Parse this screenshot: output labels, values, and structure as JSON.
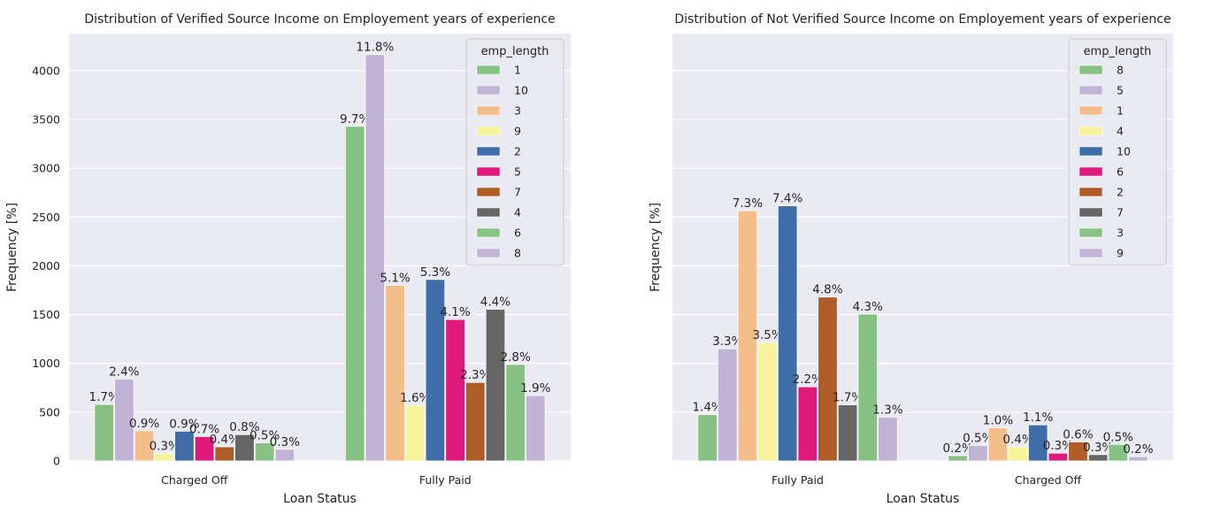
{
  "chart_data": [
    {
      "type": "bar",
      "title": "Distribution of Verified Source Income on Employement years of experience",
      "xlabel": "Loan Status",
      "ylabel": "Frequency [%]",
      "ylim": [
        0,
        4380
      ],
      "yticks": [
        0,
        500,
        1000,
        1500,
        2000,
        2500,
        3000,
        3500,
        4000
      ],
      "show_ytick_labels": true,
      "grid": true,
      "legend_title": "emp_length",
      "legend_position": "top-right",
      "categories": [
        "Charged Off",
        "Fully Paid"
      ],
      "series": [
        {
          "name": "1",
          "color": "#87c285",
          "values": [
            580,
            3430
          ],
          "labels": [
            "1.7%",
            "9.7%"
          ]
        },
        {
          "name": "10",
          "color": "#c0b3d6",
          "values": [
            840,
            4165
          ],
          "labels": [
            "2.4%",
            "11.8%"
          ]
        },
        {
          "name": "3",
          "color": "#f4be8b",
          "values": [
            310,
            1800
          ],
          "labels": [
            "0.9%",
            "5.1%"
          ]
        },
        {
          "name": "9",
          "color": "#f6f39a",
          "values": [
            75,
            570
          ],
          "labels": [
            "0.3%",
            "1.6%"
          ]
        },
        {
          "name": "2",
          "color": "#3f6da8",
          "values": [
            305,
            1860
          ],
          "labels": [
            "0.9%",
            "5.3%"
          ]
        },
        {
          "name": "5",
          "color": "#e0197c",
          "values": [
            250,
            1450
          ],
          "labels": [
            "0.7%",
            "4.1%"
          ]
        },
        {
          "name": "7",
          "color": "#b05c27",
          "values": [
            145,
            805
          ],
          "labels": [
            "0.4%",
            "2.3%"
          ]
        },
        {
          "name": "4",
          "color": "#666666",
          "values": [
            270,
            1555
          ],
          "labels": [
            "0.8%",
            "4.4%"
          ]
        },
        {
          "name": "6",
          "color": "#87c285",
          "values": [
            185,
            990
          ],
          "labels": [
            "0.5%",
            "2.8%"
          ]
        },
        {
          "name": "8",
          "color": "#c0b3d6",
          "values": [
            120,
            670
          ],
          "labels": [
            "0.3%",
            "1.9%"
          ]
        }
      ]
    },
    {
      "type": "bar",
      "title": "Distribution of Not Verified Source Income on Employement years of experience",
      "xlabel": "Loan Status",
      "ylabel": "Frequency [%]",
      "ylim": [
        0,
        4380
      ],
      "yticks": [
        0,
        500,
        1000,
        1500,
        2000,
        2500,
        3000,
        3500,
        4000
      ],
      "show_ytick_labels": false,
      "grid": true,
      "legend_title": "emp_length",
      "legend_position": "top-right",
      "categories": [
        "Fully Paid",
        "Charged Off"
      ],
      "series": [
        {
          "name": "8",
          "color": "#87c285",
          "values": [
            475,
            55
          ],
          "labels": [
            "1.4%",
            "0.2%"
          ]
        },
        {
          "name": "5",
          "color": "#c0b3d6",
          "values": [
            1150,
            160
          ],
          "labels": [
            "3.3%",
            "0.5%"
          ]
        },
        {
          "name": "1",
          "color": "#f4be8b",
          "values": [
            2565,
            340
          ],
          "labels": [
            "7.3%",
            "1.0%"
          ]
        },
        {
          "name": "4",
          "color": "#f6f39a",
          "values": [
            1215,
            145
          ],
          "labels": [
            "3.5%",
            "0.4%"
          ]
        },
        {
          "name": "10",
          "color": "#3f6da8",
          "values": [
            2615,
            370
          ],
          "labels": [
            "7.4%",
            "1.1%"
          ]
        },
        {
          "name": "6",
          "color": "#e0197c",
          "values": [
            760,
            80
          ],
          "labels": [
            "2.2%",
            "0.3%"
          ]
        },
        {
          "name": "2",
          "color": "#b05c27",
          "values": [
            1680,
            195
          ],
          "labels": [
            "4.8%",
            "0.6%"
          ]
        },
        {
          "name": "7",
          "color": "#666666",
          "values": [
            575,
            65
          ],
          "labels": [
            "1.7%",
            "0.3%"
          ]
        },
        {
          "name": "3",
          "color": "#87c285",
          "values": [
            1505,
            170
          ],
          "labels": [
            "4.3%",
            "0.5%"
          ]
        },
        {
          "name": "9",
          "color": "#c0b3d6",
          "values": [
            450,
            45
          ],
          "labels": [
            "1.3%",
            "0.2%"
          ]
        }
      ]
    }
  ]
}
